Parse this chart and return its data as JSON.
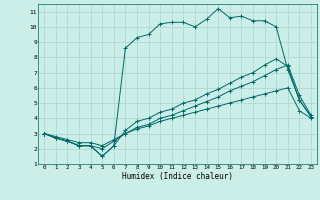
{
  "xlabel": "Humidex (Indice chaleur)",
  "ylabel": "",
  "bg_color": "#cceee8",
  "grid_color": "#aad4cc",
  "line_color": "#006868",
  "xlim": [
    -0.5,
    23.5
  ],
  "ylim": [
    1,
    11.5
  ],
  "xticks": [
    0,
    1,
    2,
    3,
    4,
    5,
    6,
    7,
    8,
    9,
    10,
    11,
    12,
    13,
    14,
    15,
    16,
    17,
    18,
    19,
    20,
    21,
    22,
    23
  ],
  "yticks": [
    1,
    2,
    3,
    4,
    5,
    6,
    7,
    8,
    9,
    10,
    11
  ],
  "series": [
    [
      3.0,
      2.7,
      2.5,
      2.2,
      2.2,
      1.5,
      2.2,
      8.6,
      9.3,
      9.5,
      10.2,
      10.3,
      10.3,
      10.0,
      10.5,
      11.2,
      10.6,
      10.7,
      10.4,
      10.4,
      10.0,
      7.2,
      5.2,
      4.1
    ],
    [
      3.0,
      2.7,
      2.5,
      2.2,
      2.2,
      1.5,
      2.2,
      3.2,
      3.8,
      4.0,
      4.4,
      4.6,
      5.0,
      5.2,
      5.6,
      5.9,
      6.3,
      6.7,
      7.0,
      7.5,
      7.9,
      7.4,
      5.2,
      4.1
    ],
    [
      3.0,
      2.7,
      2.5,
      2.2,
      2.2,
      2.0,
      2.5,
      3.0,
      3.4,
      3.6,
      4.0,
      4.2,
      4.5,
      4.8,
      5.1,
      5.4,
      5.8,
      6.1,
      6.4,
      6.8,
      7.2,
      7.5,
      5.5,
      4.2
    ],
    [
      3.0,
      2.8,
      2.6,
      2.4,
      2.4,
      2.2,
      2.6,
      3.0,
      3.3,
      3.5,
      3.8,
      4.0,
      4.2,
      4.4,
      4.6,
      4.8,
      5.0,
      5.2,
      5.4,
      5.6,
      5.8,
      6.0,
      4.5,
      4.0
    ]
  ]
}
